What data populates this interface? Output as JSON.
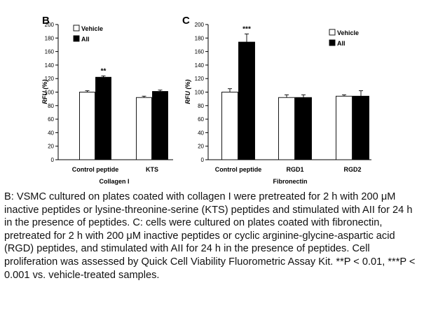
{
  "chart_data": [
    {
      "type": "bar",
      "panel_label": "B",
      "title": "Collagen I",
      "xlabel": "Collagen I",
      "ylabel": "RFU (%)",
      "ylim": [
        0,
        200
      ],
      "yticks": [
        0,
        20,
        40,
        60,
        80,
        100,
        120,
        140,
        160,
        180,
        200
      ],
      "categories": [
        "Control peptide",
        "KTS"
      ],
      "series": [
        {
          "name": "Vehicle",
          "color": "#ffffff",
          "values": [
            100,
            92
          ],
          "errors": [
            2,
            2
          ]
        },
        {
          "name": "AII",
          "color": "#000000",
          "values": [
            122,
            101
          ],
          "errors": [
            2,
            2
          ]
        }
      ],
      "annotations": [
        {
          "category": "Control peptide",
          "series": "AII",
          "text": "**"
        }
      ],
      "legend": "top-left",
      "grid": false
    },
    {
      "type": "bar",
      "panel_label": "C",
      "title": "Fibronectin",
      "xlabel": "Fibronectin",
      "ylabel": "RFU (%)",
      "ylim": [
        0,
        200
      ],
      "yticks": [
        0,
        20,
        40,
        60,
        80,
        100,
        120,
        140,
        160,
        180,
        200
      ],
      "categories": [
        "Control peptide",
        "RGD1",
        "RGD2"
      ],
      "series": [
        {
          "name": "Vehicle",
          "color": "#ffffff",
          "values": [
            100,
            92,
            94
          ],
          "errors": [
            5,
            4,
            2
          ]
        },
        {
          "name": "AII",
          "color": "#000000",
          "values": [
            174,
            92,
            94
          ],
          "errors": [
            12,
            4,
            8
          ]
        }
      ],
      "annotations": [
        {
          "category": "Control peptide",
          "series": "AII",
          "text": "***"
        }
      ],
      "legend": "top-right",
      "grid": false
    }
  ],
  "caption": "B: VSMC cultured on plates coated with collagen I were pretreated for 2 h with 200 μM inactive peptides or lysine-threonine-serine (KTS) peptides and stimulated with AII for 24 h in the presence of peptides. C: cells were cultured on plates coated with fibronectin, pretreated for 2 h with 200 μM inactive peptides or cyclic arginine-glycine-aspartic acid (RGD) peptides, and stimulated with AII for 24 h in the presence of peptides. Cell proliferation was assessed by Quick Cell Viability Fluorometric Assay Kit. **P  < 0.01, ***P < 0.001 vs. vehicle-treated samples."
}
